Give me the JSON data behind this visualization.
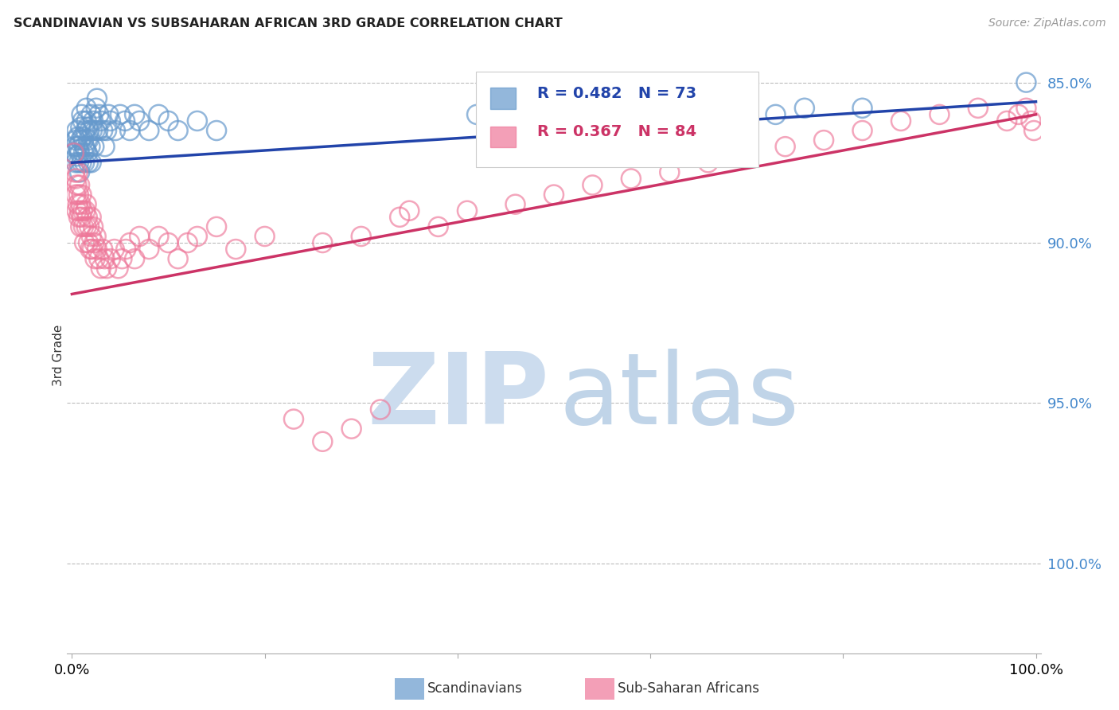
{
  "title": "SCANDINAVIAN VS SUBSAHARAN AFRICAN 3RD GRADE CORRELATION CHART",
  "source": "Source: ZipAtlas.com",
  "ylabel": "3rd Grade",
  "legend_blue_label": "Scandinavians",
  "legend_pink_label": "Sub-Saharan Africans",
  "R_blue": 0.482,
  "N_blue": 73,
  "R_pink": 0.367,
  "N_pink": 84,
  "blue_color": "#6699cc",
  "pink_color": "#ee7799",
  "blue_line_color": "#2244aa",
  "pink_line_color": "#cc3366",
  "watermark_zip_color": "#ccdcee",
  "watermark_atlas_color": "#c0d4e8",
  "ytick_values": [
    0.85,
    0.9,
    0.95,
    1.0
  ],
  "ytick_labels": [
    "85.0%",
    "90.0%",
    "95.0%",
    "100.0%"
  ],
  "ymin": 0.822,
  "ymax": 1.008,
  "xmin": -0.005,
  "xmax": 1.005,
  "blue_trend_x0": 0.0,
  "blue_trend_y0": 0.975,
  "blue_trend_x1": 1.0,
  "blue_trend_y1": 0.994,
  "pink_trend_x0": 0.0,
  "pink_trend_y0": 0.934,
  "pink_trend_x1": 1.0,
  "pink_trend_y1": 0.99,
  "blue_x": [
    0.002,
    0.003,
    0.004,
    0.004,
    0.005,
    0.005,
    0.006,
    0.006,
    0.007,
    0.007,
    0.008,
    0.008,
    0.009,
    0.009,
    0.01,
    0.01,
    0.011,
    0.011,
    0.012,
    0.012,
    0.013,
    0.013,
    0.014,
    0.014,
    0.015,
    0.015,
    0.016,
    0.016,
    0.017,
    0.017,
    0.018,
    0.019,
    0.02,
    0.02,
    0.021,
    0.022,
    0.023,
    0.024,
    0.025,
    0.026,
    0.027,
    0.028,
    0.03,
    0.032,
    0.034,
    0.036,
    0.038,
    0.04,
    0.045,
    0.05,
    0.055,
    0.06,
    0.065,
    0.07,
    0.08,
    0.09,
    0.1,
    0.11,
    0.13,
    0.15,
    0.42,
    0.45,
    0.47,
    0.51,
    0.54,
    0.57,
    0.6,
    0.65,
    0.7,
    0.73,
    0.76,
    0.82,
    0.99
  ],
  "blue_y": [
    0.978,
    0.98,
    0.975,
    0.982,
    0.977,
    0.985,
    0.98,
    0.983,
    0.975,
    0.979,
    0.972,
    0.978,
    0.982,
    0.986,
    0.975,
    0.99,
    0.983,
    0.988,
    0.978,
    0.982,
    0.975,
    0.98,
    0.985,
    0.979,
    0.988,
    0.992,
    0.986,
    0.978,
    0.982,
    0.975,
    0.985,
    0.98,
    0.99,
    0.975,
    0.985,
    0.988,
    0.98,
    0.985,
    0.992,
    0.995,
    0.985,
    0.99,
    0.988,
    0.985,
    0.98,
    0.985,
    0.99,
    0.988,
    0.985,
    0.99,
    0.988,
    0.985,
    0.99,
    0.988,
    0.985,
    0.99,
    0.988,
    0.985,
    0.988,
    0.985,
    0.99,
    0.99,
    0.985,
    0.99,
    0.988,
    0.992,
    0.99,
    0.988,
    0.99,
    0.99,
    0.992,
    0.992,
    1.0
  ],
  "pink_x": [
    0.002,
    0.003,
    0.004,
    0.004,
    0.005,
    0.005,
    0.006,
    0.006,
    0.007,
    0.007,
    0.008,
    0.008,
    0.009,
    0.009,
    0.01,
    0.01,
    0.011,
    0.012,
    0.013,
    0.014,
    0.015,
    0.015,
    0.016,
    0.017,
    0.018,
    0.019,
    0.02,
    0.02,
    0.021,
    0.022,
    0.023,
    0.024,
    0.025,
    0.026,
    0.028,
    0.03,
    0.032,
    0.034,
    0.036,
    0.04,
    0.044,
    0.048,
    0.052,
    0.056,
    0.06,
    0.065,
    0.07,
    0.08,
    0.09,
    0.1,
    0.11,
    0.12,
    0.13,
    0.15,
    0.17,
    0.2,
    0.23,
    0.26,
    0.3,
    0.34,
    0.26,
    0.29,
    0.32,
    0.35,
    0.38,
    0.41,
    0.46,
    0.5,
    0.54,
    0.58,
    0.62,
    0.66,
    0.7,
    0.74,
    0.78,
    0.82,
    0.86,
    0.9,
    0.94,
    0.97,
    0.982,
    0.99,
    0.995,
    0.998
  ],
  "pink_y": [
    0.978,
    0.972,
    0.965,
    0.97,
    0.96,
    0.968,
    0.962,
    0.972,
    0.958,
    0.965,
    0.96,
    0.968,
    0.955,
    0.962,
    0.958,
    0.965,
    0.96,
    0.955,
    0.95,
    0.96,
    0.955,
    0.962,
    0.958,
    0.95,
    0.955,
    0.948,
    0.958,
    0.952,
    0.948,
    0.955,
    0.95,
    0.945,
    0.952,
    0.948,
    0.945,
    0.942,
    0.948,
    0.945,
    0.942,
    0.945,
    0.948,
    0.942,
    0.945,
    0.948,
    0.95,
    0.945,
    0.952,
    0.948,
    0.952,
    0.95,
    0.945,
    0.95,
    0.952,
    0.955,
    0.948,
    0.952,
    0.895,
    0.95,
    0.952,
    0.958,
    0.888,
    0.892,
    0.898,
    0.96,
    0.955,
    0.96,
    0.962,
    0.965,
    0.968,
    0.97,
    0.972,
    0.975,
    0.978,
    0.98,
    0.982,
    0.985,
    0.988,
    0.99,
    0.992,
    0.988,
    0.99,
    0.992,
    0.988,
    0.985
  ]
}
